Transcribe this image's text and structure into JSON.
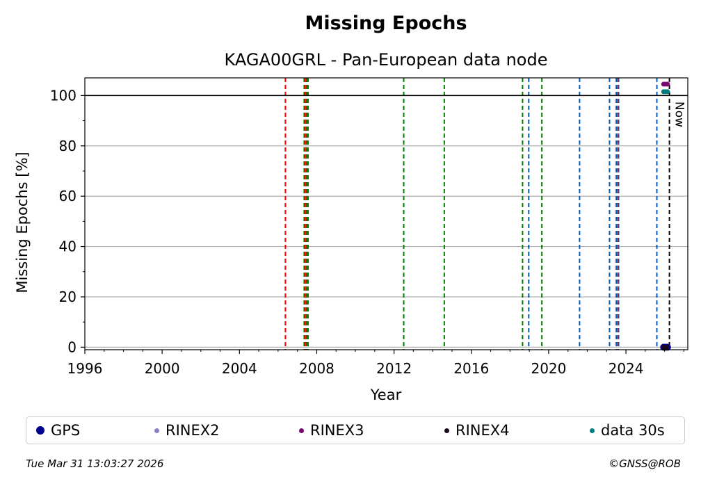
{
  "chart_data": {
    "type": "scatter",
    "title": "Missing Epochs",
    "subtitle": "KAGA00GRL - Pan-European data node",
    "xlabel": "Year",
    "ylabel": "Missing Epochs [%]",
    "xlim": [
      1996,
      2027.2
    ],
    "ylim": [
      -1,
      107
    ],
    "x_ticks": [
      "1996",
      "2000",
      "2004",
      "2008",
      "2012",
      "2016",
      "2020",
      "2024"
    ],
    "y_ticks": [
      "0",
      "20",
      "40",
      "60",
      "80",
      "100"
    ],
    "grid": "horizontal",
    "reference_line": 100,
    "now_label": "Now",
    "now_x": 2026.25,
    "vlines": [
      {
        "x": 2006.38,
        "color": "#008000"
      },
      {
        "x": 2006.38,
        "color": "#ff0000"
      },
      {
        "x": 2007.35,
        "color": "#008000"
      },
      {
        "x": 2007.38,
        "color": "#ff0000"
      },
      {
        "x": 2007.45,
        "color": "#008000"
      },
      {
        "x": 2007.5,
        "color": "#ff0000"
      },
      {
        "x": 2007.55,
        "color": "#008000"
      },
      {
        "x": 2012.5,
        "color": "#008000"
      },
      {
        "x": 2014.6,
        "color": "#008000"
      },
      {
        "x": 2018.65,
        "color": "#008000"
      },
      {
        "x": 2018.97,
        "color": "#005cbf"
      },
      {
        "x": 2019.65,
        "color": "#008000"
      },
      {
        "x": 2021.6,
        "color": "#005cbf"
      },
      {
        "x": 2023.15,
        "color": "#005cbf"
      },
      {
        "x": 2023.5,
        "color": "#005cbf"
      },
      {
        "x": 2023.58,
        "color": "#ff0000"
      },
      {
        "x": 2023.62,
        "color": "#005cbf"
      },
      {
        "x": 2025.6,
        "color": "#005cbf"
      }
    ],
    "series": [
      {
        "name": "GPS",
        "color": "#00008b",
        "points": [
          [
            2025.95,
            0
          ],
          [
            2026.05,
            0
          ],
          [
            2026.15,
            0
          ]
        ]
      },
      {
        "name": "RINEX2",
        "color": "#8a7fbf",
        "points": []
      },
      {
        "name": "RINEX3",
        "color": "#7a0a6e",
        "points": [
          [
            2025.95,
            104.5
          ],
          [
            2026.05,
            104.5
          ],
          [
            2026.15,
            104.5
          ]
        ]
      },
      {
        "name": "RINEX4",
        "color": "#1a0520",
        "points": [
          [
            2025.95,
            0
          ],
          [
            2026.1,
            0
          ]
        ]
      },
      {
        "name": "data 30s",
        "color": "#007a7a",
        "points": [
          [
            2025.95,
            101.5
          ],
          [
            2026.05,
            101.5
          ],
          [
            2026.15,
            101.5
          ]
        ]
      }
    ]
  },
  "footer": {
    "timestamp": "Tue Mar 31 13:03:27 2026",
    "copyright": "©GNSS@ROB"
  }
}
